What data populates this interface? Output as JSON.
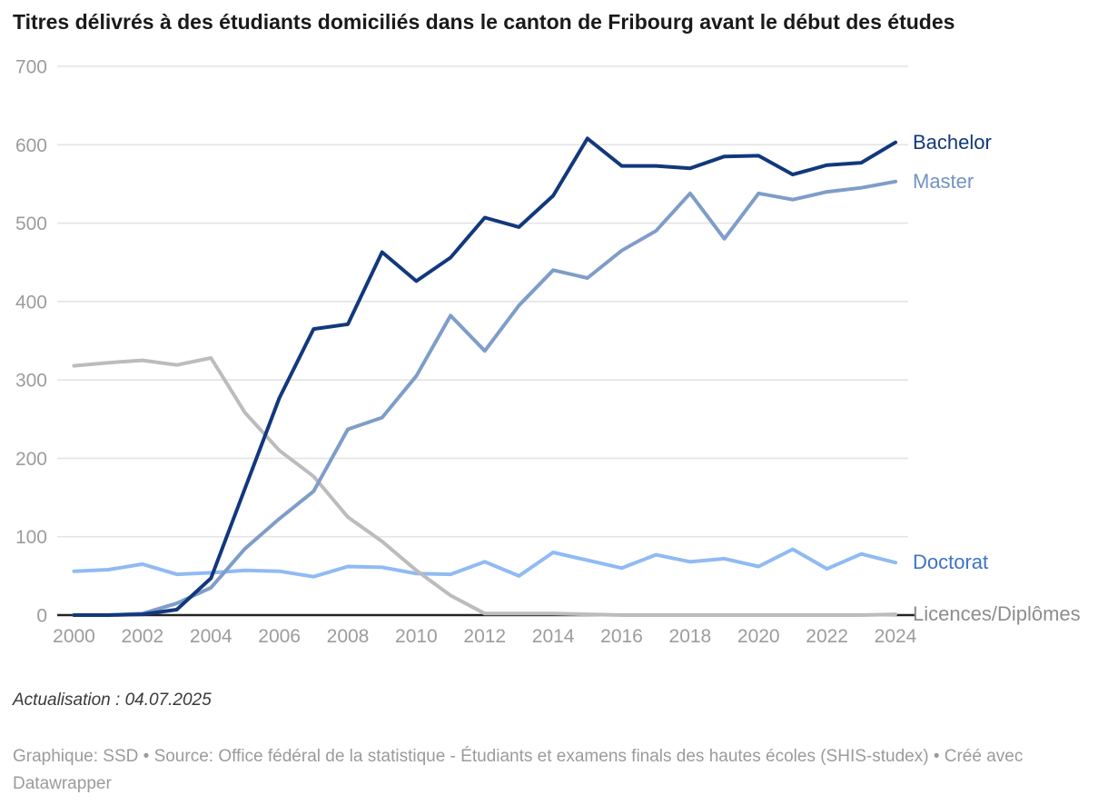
{
  "title": "Titres délivrés à des étudiants domiciliés dans le canton de Fribourg avant le début des études",
  "notes": "Actualisation : 04.07.2025",
  "source": "Graphique: SSD • Source: Office fédéral de la statistique - Étudiants et examens finals des hautes écoles (SHIS-studex) • Créé avec Datawrapper",
  "colors": {
    "grid": "#e4e4e4",
    "axis": "#222222",
    "tick_label": "#9c9c9c"
  },
  "chart_data": {
    "type": "line",
    "title": "Titres délivrés à des étudiants domiciliés dans le canton de Fribourg avant le début des études",
    "xlabel": "",
    "ylabel": "",
    "ylim": [
      0,
      700
    ],
    "grid": true,
    "legend_position": "right-of-line-ends",
    "x": [
      2000,
      2001,
      2002,
      2003,
      2004,
      2005,
      2006,
      2007,
      2008,
      2009,
      2010,
      2011,
      2012,
      2013,
      2014,
      2015,
      2016,
      2017,
      2018,
      2019,
      2020,
      2021,
      2022,
      2023,
      2024
    ],
    "xticks": [
      2000,
      2002,
      2004,
      2006,
      2008,
      2010,
      2012,
      2014,
      2016,
      2018,
      2020,
      2022,
      2024
    ],
    "yticks": [
      0,
      100,
      200,
      300,
      400,
      500,
      600,
      700
    ],
    "series": [
      {
        "name": "Bachelor",
        "color": "#12387c",
        "label_color": "#12387c",
        "values": [
          0,
          0,
          1,
          7,
          47,
          162,
          277,
          365,
          371,
          463,
          426,
          456,
          507,
          495,
          535,
          608,
          573,
          573,
          570,
          585,
          586,
          562,
          574,
          577,
          603
        ]
      },
      {
        "name": "Master",
        "color": "#7e9dc8",
        "label_color": "#7391c4",
        "values": [
          0,
          0,
          2,
          15,
          35,
          85,
          123,
          158,
          237,
          252,
          305,
          382,
          337,
          395,
          440,
          430,
          465,
          490,
          538,
          480,
          538,
          530,
          540,
          545,
          553
        ]
      },
      {
        "name": "Doctorat",
        "color": "#90baf3",
        "label_color": "#3d73c5",
        "values": [
          56,
          58,
          65,
          52,
          54,
          57,
          56,
          49,
          62,
          61,
          53,
          52,
          68,
          50,
          80,
          70,
          60,
          77,
          68,
          72,
          62,
          84,
          59,
          78,
          67
        ]
      },
      {
        "name": "Licences/Diplômes",
        "color": "#bcbcbc",
        "label_color": "#8d8d8d",
        "values": [
          318,
          322,
          325,
          319,
          328,
          258,
          210,
          177,
          125,
          94,
          57,
          25,
          2,
          2,
          2,
          1,
          0,
          0,
          0,
          0,
          0,
          0,
          0,
          0,
          1
        ]
      }
    ]
  }
}
